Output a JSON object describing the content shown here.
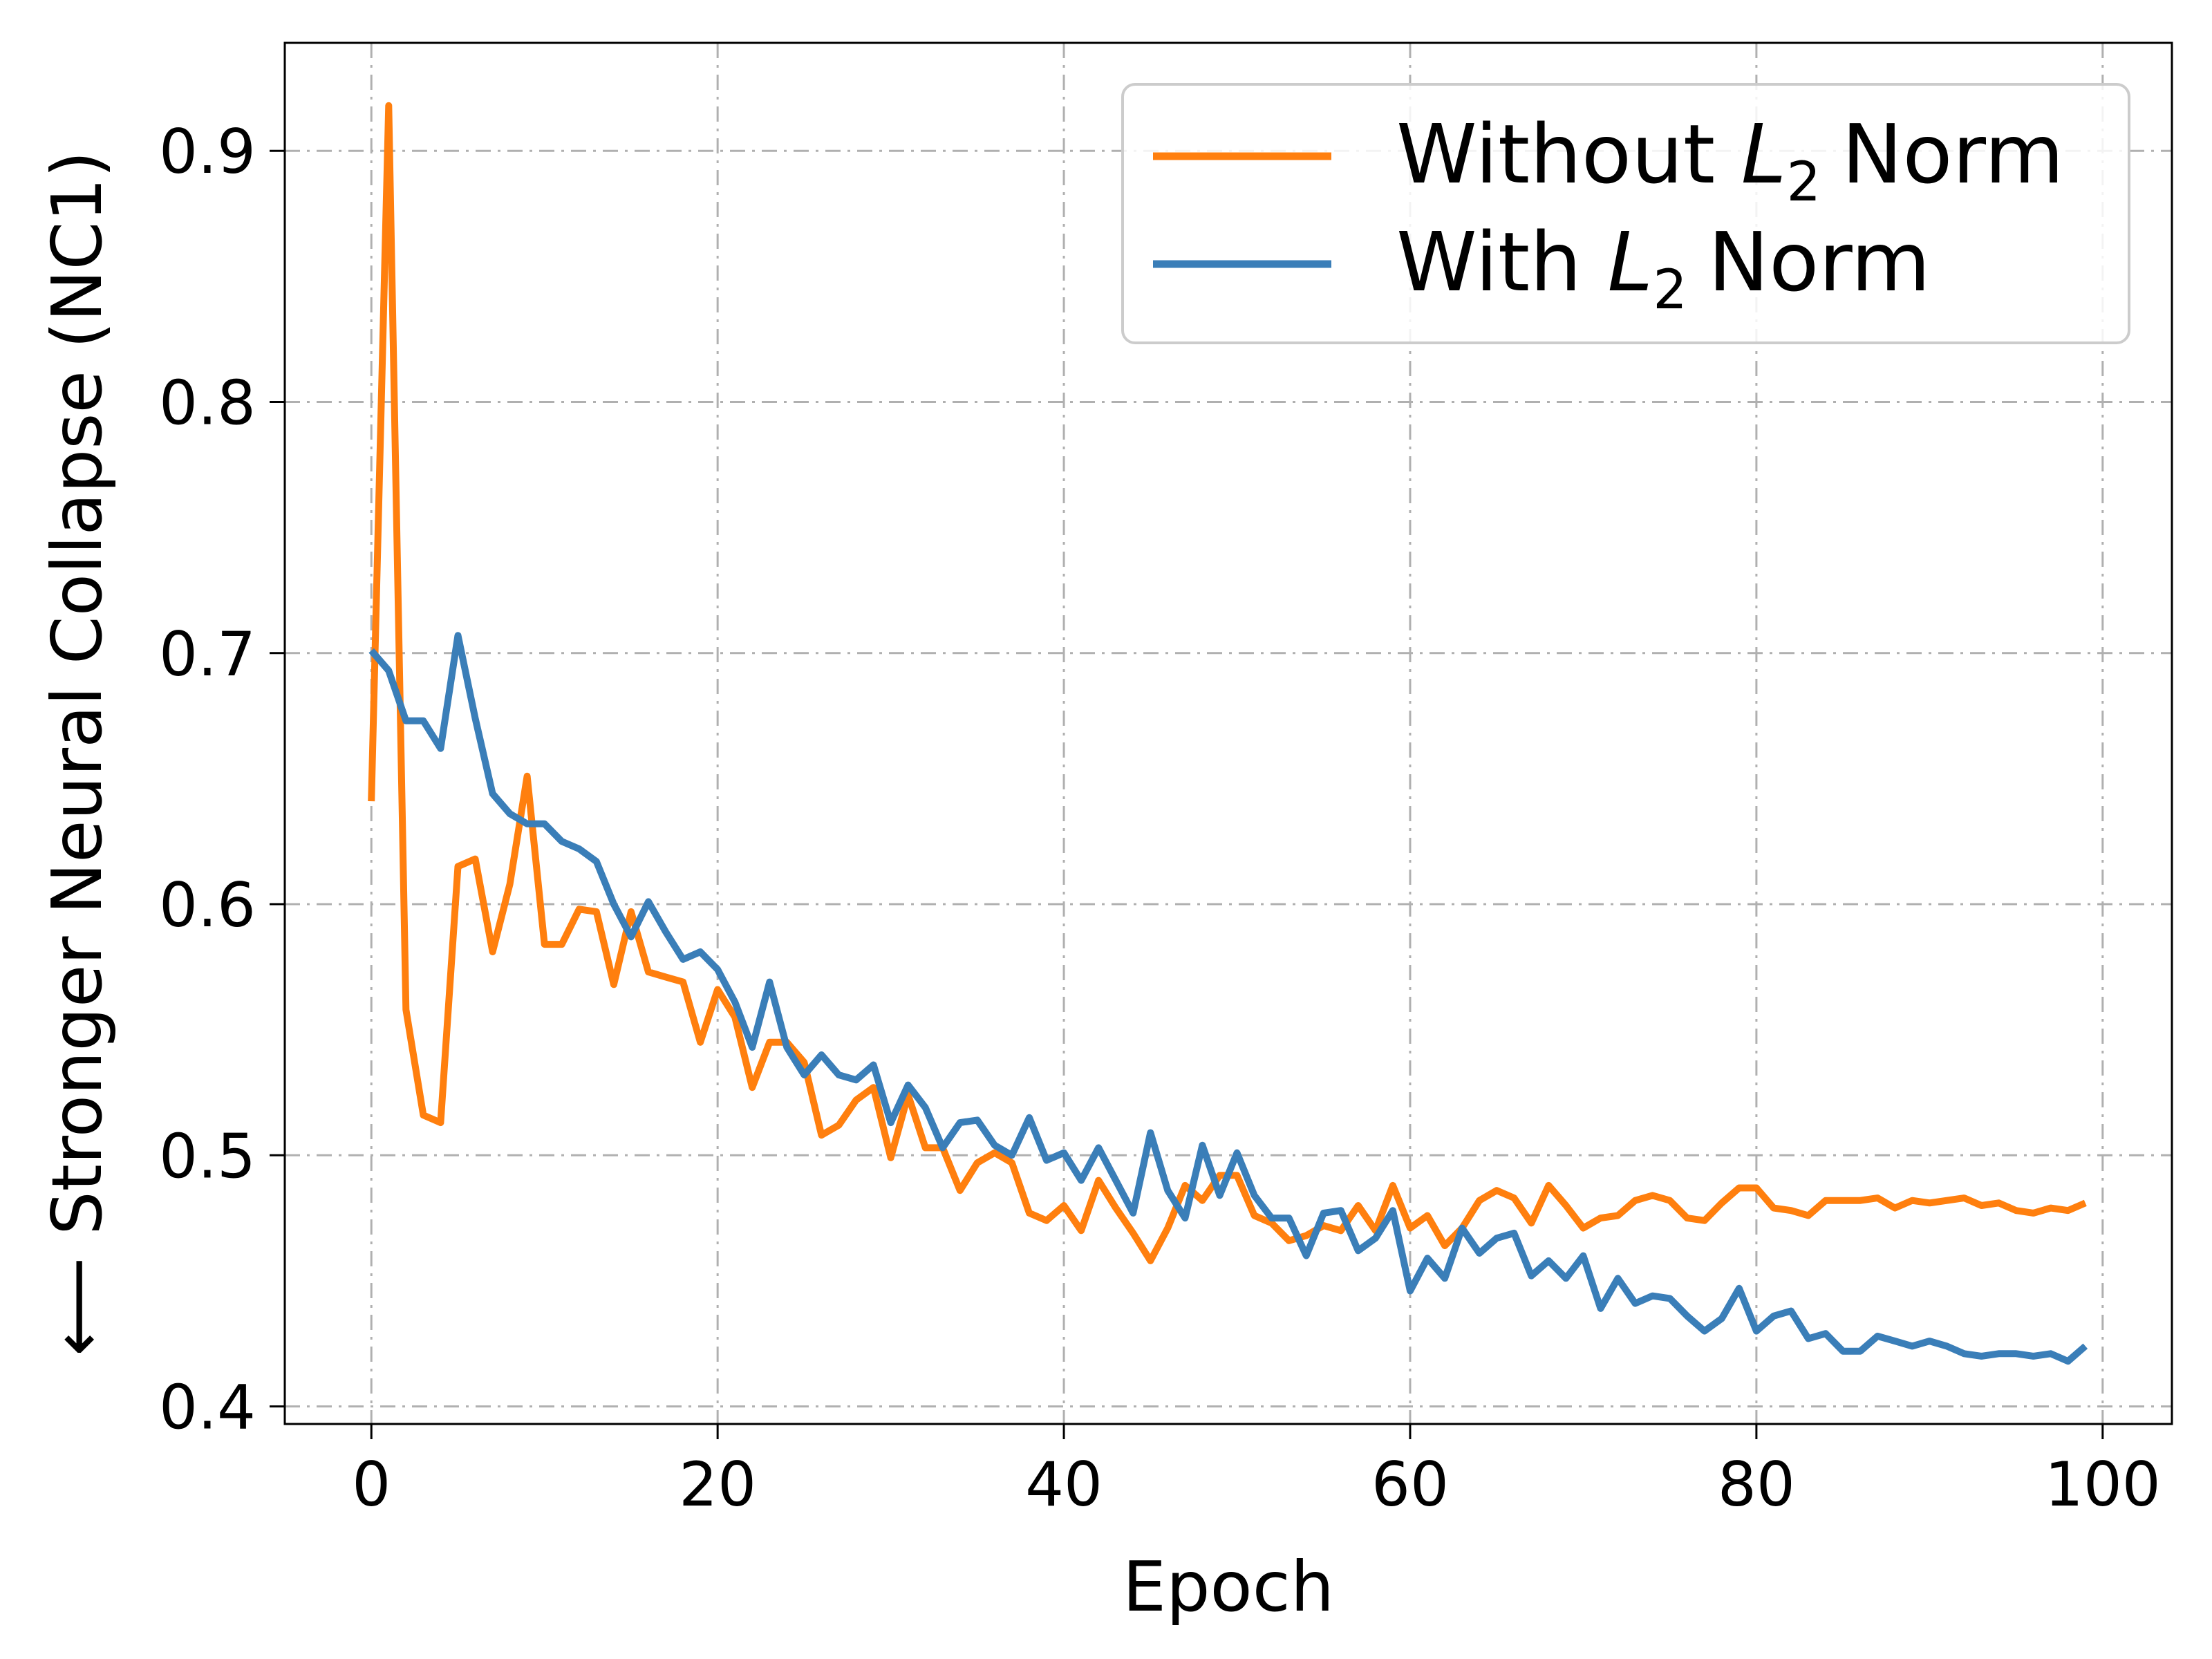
{
  "chart_data": {
    "type": "line",
    "title": "",
    "xlabel": "Epoch",
    "ylabel": "⟵ Stronger Neural Collapse (NC1)",
    "xlim": [
      -5,
      104
    ],
    "ylim": [
      0.393,
      0.943
    ],
    "xticks": [
      0,
      20,
      40,
      60,
      80,
      100
    ],
    "yticks": [
      0.4,
      0.5,
      0.6,
      0.7,
      0.8,
      0.9
    ],
    "xtick_labels": [
      "0",
      "20",
      "40",
      "60",
      "80",
      "100"
    ],
    "ytick_labels": [
      "0.4",
      "0.5",
      "0.6",
      "0.7",
      "0.8",
      "0.9"
    ],
    "grid": true,
    "legend_position": "top-right",
    "series": [
      {
        "name": "Without",
        "legend_math": "L",
        "legend_sub": "2",
        "legend_suffix": "Norm",
        "color": "#ff7f0e",
        "values": [
          0.641,
          0.918,
          0.558,
          0.516,
          0.513,
          0.615,
          0.618,
          0.581,
          0.608,
          0.651,
          0.584,
          0.584,
          0.598,
          0.597,
          0.568,
          0.597,
          0.573,
          0.571,
          0.569,
          0.545,
          0.566,
          0.555,
          0.527,
          0.545,
          0.545,
          0.537,
          0.508,
          0.512,
          0.522,
          0.527,
          0.499,
          0.524,
          0.503,
          0.503,
          0.486,
          0.497,
          0.501,
          0.497,
          0.477,
          0.474,
          0.48,
          0.47,
          0.49,
          0.479,
          0.469,
          0.458,
          0.471,
          0.488,
          0.482,
          0.492,
          0.492,
          0.476,
          0.473,
          0.466,
          0.468,
          0.472,
          0.47,
          0.48,
          0.47,
          0.488,
          0.471,
          0.476,
          0.464,
          0.471,
          0.482,
          0.486,
          0.483,
          0.473,
          0.488,
          0.48,
          0.471,
          0.475,
          0.476,
          0.482,
          0.484,
          0.482,
          0.475,
          0.474,
          0.481,
          0.487,
          0.487,
          0.479,
          0.478,
          0.476,
          0.482,
          0.482,
          0.482,
          0.483,
          0.479,
          0.482,
          0.481,
          0.482,
          0.483,
          0.48,
          0.481,
          0.478,
          0.477,
          0.479,
          0.478,
          0.481
        ]
      },
      {
        "name": "With",
        "legend_math": "L",
        "legend_sub": "2",
        "legend_suffix": "Norm",
        "color": "#3a7eb8",
        "values": [
          0.701,
          0.693,
          0.673,
          0.673,
          0.662,
          0.707,
          0.674,
          0.644,
          0.636,
          0.632,
          0.632,
          0.625,
          0.622,
          0.617,
          0.6,
          0.587,
          0.601,
          0.589,
          0.578,
          0.581,
          0.574,
          0.561,
          0.543,
          0.569,
          0.543,
          0.532,
          0.54,
          0.532,
          0.53,
          0.536,
          0.513,
          0.528,
          0.519,
          0.503,
          0.513,
          0.514,
          0.504,
          0.5,
          0.515,
          0.498,
          0.501,
          0.49,
          0.503,
          0.49,
          0.477,
          0.509,
          0.486,
          0.475,
          0.504,
          0.484,
          0.501,
          0.484,
          0.475,
          0.475,
          0.46,
          0.477,
          0.478,
          0.462,
          0.467,
          0.478,
          0.446,
          0.459,
          0.451,
          0.471,
          0.461,
          0.467,
          0.469,
          0.452,
          0.458,
          0.451,
          0.46,
          0.439,
          0.451,
          0.441,
          0.444,
          0.443,
          0.436,
          0.43,
          0.435,
          0.447,
          0.43,
          0.436,
          0.438,
          0.427,
          0.429,
          0.422,
          0.422,
          0.428,
          0.426,
          0.424,
          0.426,
          0.424,
          0.421,
          0.42,
          0.421,
          0.421,
          0.42,
          0.421,
          0.418,
          0.424
        ]
      }
    ]
  }
}
